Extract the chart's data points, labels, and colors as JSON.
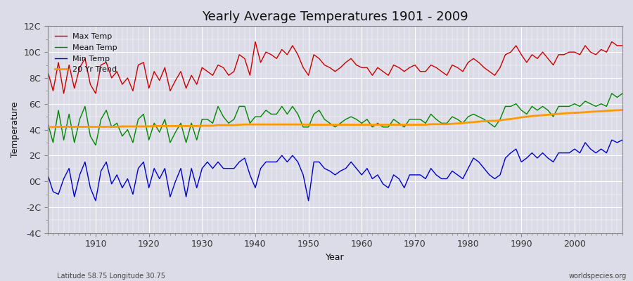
{
  "title": "Yearly Average Temperatures 1901 - 2009",
  "xlabel": "Year",
  "ylabel": "Temperature",
  "subtitle_left": "Latitude 58.75 Longitude 30.75",
  "subtitle_right": "worldspecies.org",
  "ylim": [
    -4,
    12
  ],
  "yticks": [
    -4,
    -2,
    0,
    2,
    4,
    6,
    8,
    10,
    12
  ],
  "ytick_labels": [
    "-4C",
    "-2C",
    "0C",
    "2C",
    "4C",
    "6C",
    "8C",
    "10C",
    "12C"
  ],
  "xlim": [
    1901,
    2009
  ],
  "xticks": [
    1910,
    1920,
    1930,
    1940,
    1950,
    1960,
    1970,
    1980,
    1990,
    2000
  ],
  "bg_color": "#dcdce8",
  "plot_bg_color": "#dcdce8",
  "grid_color": "#ffffff",
  "max_temp_color": "#cc0000",
  "mean_temp_color": "#008800",
  "min_temp_color": "#0000cc",
  "trend_color": "#ff9900",
  "legend_labels": [
    "Max Temp",
    "Mean Temp",
    "Min Temp",
    "20 Yr Trend"
  ],
  "years": [
    1901,
    1902,
    1903,
    1904,
    1905,
    1906,
    1907,
    1908,
    1909,
    1910,
    1911,
    1912,
    1913,
    1914,
    1915,
    1916,
    1917,
    1918,
    1919,
    1920,
    1921,
    1922,
    1923,
    1924,
    1925,
    1926,
    1927,
    1928,
    1929,
    1930,
    1931,
    1932,
    1933,
    1934,
    1935,
    1936,
    1937,
    1938,
    1939,
    1940,
    1941,
    1942,
    1943,
    1944,
    1945,
    1946,
    1947,
    1948,
    1949,
    1950,
    1951,
    1952,
    1953,
    1954,
    1955,
    1956,
    1957,
    1958,
    1959,
    1960,
    1961,
    1962,
    1963,
    1964,
    1965,
    1966,
    1967,
    1968,
    1969,
    1970,
    1971,
    1972,
    1973,
    1974,
    1975,
    1976,
    1977,
    1978,
    1979,
    1980,
    1981,
    1982,
    1983,
    1984,
    1985,
    1986,
    1987,
    1988,
    1989,
    1990,
    1991,
    1992,
    1993,
    1994,
    1995,
    1996,
    1997,
    1998,
    1999,
    2000,
    2001,
    2002,
    2003,
    2004,
    2005,
    2006,
    2007,
    2008,
    2009
  ],
  "max_temp": [
    8.5,
    7.0,
    9.2,
    6.8,
    9.0,
    7.2,
    8.8,
    9.5,
    7.5,
    6.8,
    9.0,
    9.2,
    8.0,
    8.5,
    7.5,
    8.0,
    7.0,
    9.0,
    9.2,
    7.2,
    8.5,
    7.8,
    8.8,
    7.0,
    7.8,
    8.5,
    7.2,
    8.2,
    7.5,
    8.8,
    8.5,
    8.2,
    9.0,
    8.8,
    8.2,
    8.5,
    9.8,
    9.5,
    8.2,
    10.8,
    9.2,
    10.0,
    9.8,
    9.5,
    10.2,
    9.8,
    10.5,
    9.8,
    8.8,
    8.2,
    9.8,
    9.5,
    9.0,
    8.8,
    8.5,
    8.8,
    9.2,
    9.5,
    9.0,
    8.8,
    8.8,
    8.2,
    8.8,
    8.5,
    8.2,
    9.0,
    8.8,
    8.5,
    8.8,
    9.0,
    8.5,
    8.5,
    9.0,
    8.8,
    8.5,
    8.2,
    9.0,
    8.8,
    8.5,
    9.2,
    9.5,
    9.2,
    8.8,
    8.5,
    8.2,
    8.8,
    9.8,
    10.0,
    10.5,
    9.8,
    9.2,
    9.8,
    9.5,
    10.0,
    9.5,
    9.0,
    9.8,
    9.8,
    10.0,
    10.0,
    9.8,
    10.5,
    10.0,
    9.8,
    10.2,
    10.0,
    10.8,
    10.5,
    10.5
  ],
  "mean_temp": [
    4.5,
    3.0,
    5.5,
    3.2,
    5.2,
    3.0,
    4.8,
    5.8,
    3.5,
    2.8,
    4.8,
    5.5,
    4.2,
    4.5,
    3.5,
    4.0,
    3.0,
    4.8,
    5.2,
    3.2,
    4.5,
    3.8,
    4.8,
    3.0,
    3.8,
    4.5,
    3.0,
    4.5,
    3.2,
    4.8,
    4.8,
    4.5,
    5.8,
    5.0,
    4.5,
    4.8,
    5.8,
    5.8,
    4.5,
    5.0,
    5.0,
    5.5,
    5.2,
    5.2,
    5.8,
    5.2,
    5.8,
    5.2,
    4.2,
    4.2,
    5.2,
    5.5,
    4.8,
    4.5,
    4.2,
    4.5,
    4.8,
    5.0,
    4.8,
    4.5,
    4.8,
    4.2,
    4.5,
    4.2,
    4.2,
    4.8,
    4.5,
    4.2,
    4.8,
    4.8,
    4.8,
    4.5,
    5.2,
    4.8,
    4.5,
    4.5,
    5.0,
    4.8,
    4.5,
    5.0,
    5.2,
    5.0,
    4.8,
    4.5,
    4.2,
    4.8,
    5.8,
    5.8,
    6.0,
    5.5,
    5.2,
    5.8,
    5.5,
    5.8,
    5.5,
    5.0,
    5.8,
    5.8,
    5.8,
    6.0,
    5.8,
    6.2,
    6.0,
    5.8,
    6.0,
    5.8,
    6.8,
    6.5,
    6.8
  ],
  "min_temp": [
    0.5,
    -0.8,
    -1.0,
    0.2,
    1.0,
    -1.2,
    0.5,
    1.5,
    -0.5,
    -1.5,
    0.8,
    1.5,
    -0.2,
    0.5,
    -0.5,
    0.2,
    -1.0,
    1.0,
    1.5,
    -0.5,
    1.0,
    0.2,
    1.0,
    -1.2,
    0.0,
    1.0,
    -1.2,
    1.0,
    -0.5,
    1.0,
    1.5,
    1.0,
    1.5,
    1.0,
    1.0,
    1.0,
    1.5,
    1.8,
    0.5,
    -0.5,
    1.0,
    1.5,
    1.5,
    1.5,
    2.0,
    1.5,
    2.0,
    1.5,
    0.5,
    -1.5,
    1.5,
    1.5,
    1.0,
    0.8,
    0.5,
    0.8,
    1.0,
    1.5,
    1.0,
    0.5,
    1.0,
    0.2,
    0.5,
    -0.2,
    -0.5,
    0.5,
    0.2,
    -0.5,
    0.5,
    0.5,
    0.5,
    0.2,
    1.0,
    0.5,
    0.2,
    0.2,
    0.8,
    0.5,
    0.2,
    1.0,
    1.8,
    1.5,
    1.0,
    0.5,
    0.2,
    0.5,
    1.8,
    2.2,
    2.5,
    1.5,
    1.8,
    2.2,
    1.8,
    2.2,
    1.8,
    1.5,
    2.2,
    2.2,
    2.2,
    2.5,
    2.2,
    3.0,
    2.5,
    2.2,
    2.5,
    2.2,
    3.2,
    3.0,
    3.2
  ],
  "trend": [
    4.2,
    4.2,
    4.22,
    4.22,
    4.22,
    4.22,
    4.22,
    4.22,
    4.22,
    4.22,
    4.22,
    4.22,
    4.22,
    4.22,
    4.25,
    4.25,
    4.25,
    4.25,
    4.25,
    4.25,
    4.28,
    4.28,
    4.28,
    4.28,
    4.28,
    4.28,
    4.28,
    4.28,
    4.28,
    4.3,
    4.3,
    4.3,
    4.35,
    4.35,
    4.35,
    4.35,
    4.38,
    4.4,
    4.4,
    4.4,
    4.4,
    4.4,
    4.4,
    4.4,
    4.4,
    4.4,
    4.4,
    4.4,
    4.4,
    4.38,
    4.38,
    4.38,
    4.38,
    4.38,
    4.38,
    4.38,
    4.38,
    4.38,
    4.38,
    4.38,
    4.38,
    4.38,
    4.38,
    4.38,
    4.38,
    4.38,
    4.38,
    4.38,
    4.38,
    4.38,
    4.38,
    4.38,
    4.42,
    4.42,
    4.42,
    4.42,
    4.45,
    4.48,
    4.5,
    4.55,
    4.58,
    4.62,
    4.65,
    4.68,
    4.68,
    4.72,
    4.78,
    4.82,
    4.88,
    4.95,
    5.0,
    5.05,
    5.08,
    5.12,
    5.15,
    5.18,
    5.22,
    5.25,
    5.28,
    5.3,
    5.32,
    5.35,
    5.38,
    5.4,
    5.42,
    5.45,
    5.48,
    5.5,
    5.52
  ]
}
